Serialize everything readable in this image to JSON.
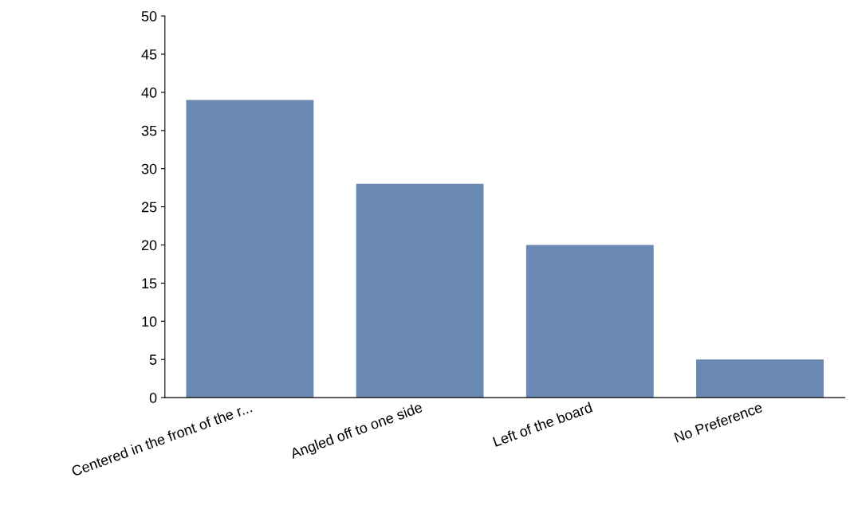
{
  "chart_data": {
    "type": "bar",
    "categories": [
      "Centered in the front of the r...",
      "Angled off to one side",
      "Left of the board",
      "No Preference"
    ],
    "values": [
      39,
      28,
      20,
      5
    ],
    "color": "#6a8ab5",
    "ylim": [
      0,
      50
    ],
    "yticks": [
      0,
      5,
      10,
      15,
      20,
      25,
      30,
      35,
      40,
      45,
      50
    ],
    "grid": false,
    "legend": false
  }
}
